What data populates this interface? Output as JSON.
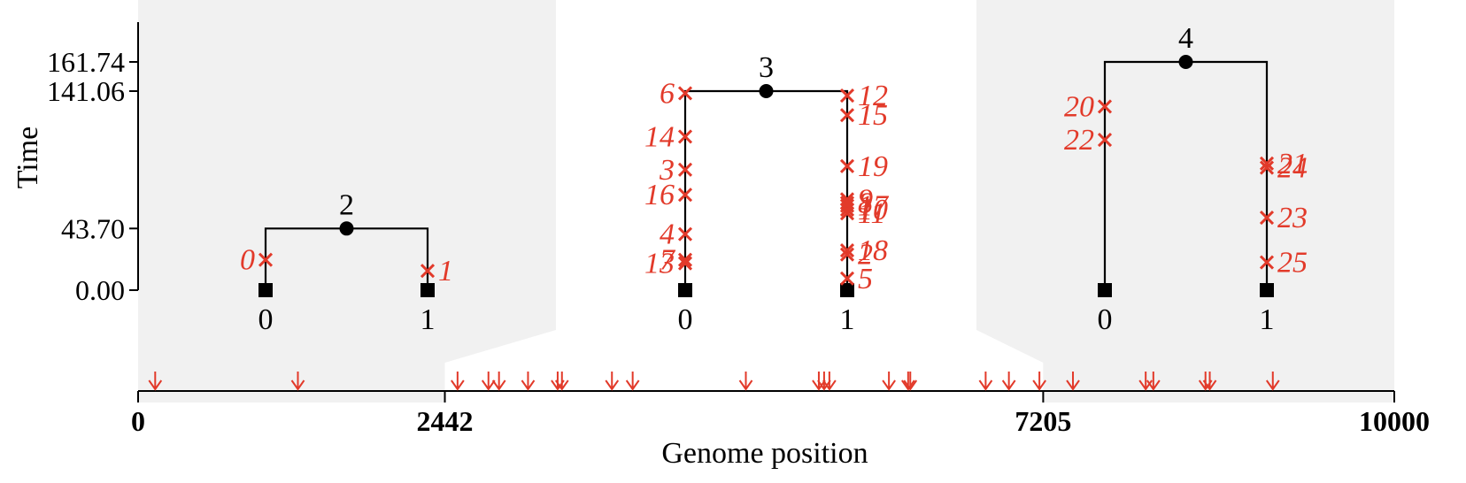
{
  "axes": {
    "y_title": "Time",
    "x_title": "Genome position",
    "y_ticks": [
      {
        "label": "161.74",
        "value": 161.74
      },
      {
        "label": "141.06",
        "value": 141.06
      },
      {
        "label": "43.70",
        "value": 43.7
      },
      {
        "label": "0.00",
        "value": 0.0
      }
    ],
    "x_ticks": [
      {
        "label": "0",
        "value": 0
      },
      {
        "label": "2442",
        "value": 2442
      },
      {
        "label": "7205",
        "value": 7205
      },
      {
        "label": "10000",
        "value": 10000
      }
    ],
    "genome_length": 10000
  },
  "colors": {
    "mutation": "#e23a2a",
    "shade": "#f1f1f1",
    "ink": "#000000"
  },
  "trees": [
    {
      "root_label": "2",
      "root_time": 43.7,
      "interval": [
        0,
        2442
      ],
      "shaded": true,
      "leaves": [
        "0",
        "1"
      ],
      "mutations": [
        {
          "id": "0",
          "leaf": 0,
          "time": 21.5
        },
        {
          "id": "1",
          "leaf": 1,
          "time": 13.7
        }
      ]
    },
    {
      "root_label": "3",
      "root_time": 141.06,
      "interval": [
        2442,
        7205
      ],
      "shaded": false,
      "leaves": [
        "0",
        "1"
      ],
      "mutations": [
        {
          "id": "6",
          "leaf": 0,
          "time": 139.5
        },
        {
          "id": "14",
          "leaf": 0,
          "time": 108.8
        },
        {
          "id": "3",
          "leaf": 0,
          "time": 85.4
        },
        {
          "id": "16",
          "leaf": 0,
          "time": 67.6
        },
        {
          "id": "4",
          "leaf": 0,
          "time": 39.7
        },
        {
          "id": "7",
          "leaf": 0,
          "time": 21.5
        },
        {
          "id": "13",
          "leaf": 0,
          "time": 19.0
        },
        {
          "id": "12",
          "leaf": 1,
          "time": 137.9
        },
        {
          "id": "15",
          "leaf": 1,
          "time": 124.0
        },
        {
          "id": "19",
          "leaf": 1,
          "time": 87.9
        },
        {
          "id": "9",
          "leaf": 1,
          "time": 64.4
        },
        {
          "id": "8",
          "leaf": 1,
          "time": 61.8
        },
        {
          "id": "17",
          "leaf": 1,
          "time": 59.8
        },
        {
          "id": "10",
          "leaf": 1,
          "time": 57.1
        },
        {
          "id": "11",
          "leaf": 1,
          "time": 54.4
        },
        {
          "id": "18",
          "leaf": 1,
          "time": 28.2
        },
        {
          "id": "2",
          "leaf": 1,
          "time": 25.3
        },
        {
          "id": "5",
          "leaf": 1,
          "time": 8.3
        }
      ]
    },
    {
      "root_label": "4",
      "root_time": 161.74,
      "interval": [
        7205,
        10000
      ],
      "shaded": true,
      "leaves": [
        "0",
        "1"
      ],
      "mutations": [
        {
          "id": "20",
          "leaf": 0,
          "time": 130.1
        },
        {
          "id": "22",
          "leaf": 0,
          "time": 106.5
        },
        {
          "id": "21",
          "leaf": 1,
          "time": 89.8
        },
        {
          "id": "24",
          "leaf": 1,
          "time": 86.8
        },
        {
          "id": "23",
          "leaf": 1,
          "time": 51.4
        },
        {
          "id": "25",
          "leaf": 1,
          "time": 19.7
        }
      ]
    }
  ],
  "site_positions": [
    136,
    1272,
    2543,
    2789,
    2873,
    3104,
    3340,
    3374,
    3772,
    3937,
    4838,
    5419,
    5461,
    5503,
    5977,
    6130,
    6147,
    6747,
    6932,
    7175,
    7442,
    8021,
    8082,
    8497,
    8531,
    9033
  ]
}
